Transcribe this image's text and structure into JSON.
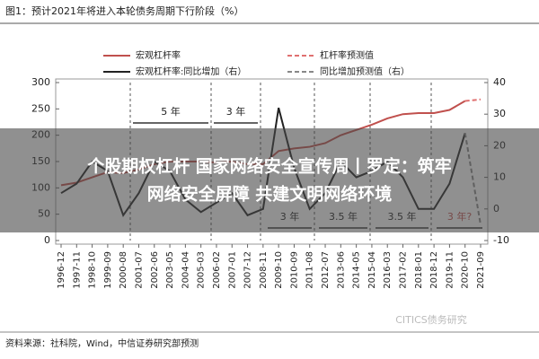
{
  "chart_data": {
    "type": "line",
    "title": "图1：预计2021年将进入本轮债务周期下行阶段（%）",
    "source": "资料来源：社科院，Wind，中信证券研究部预测",
    "watermark": "CITICS债务研究",
    "categories": [
      "1996-12",
      "1997-11",
      "1998-10",
      "1999-09",
      "2000-08",
      "2001-07",
      "2002-06",
      "2003-05",
      "2004-04",
      "2005-03",
      "2006-02",
      "2007-01",
      "2007-12",
      "2008-11",
      "2009-10",
      "2010-09",
      "2011-08",
      "2012-07",
      "2013-06",
      "2014-05",
      "2015-04",
      "2016-03",
      "2017-02",
      "2018-01",
      "2018-12",
      "2019-11",
      "2020-10",
      "2021-09"
    ],
    "series": [
      {
        "name": "宏观杠杆率",
        "color": "#c0504d",
        "dash": false,
        "values": [
          105,
          110,
          120,
          130,
          128,
          135,
          145,
          150,
          150,
          150,
          148,
          150,
          145,
          145,
          170,
          175,
          178,
          185,
          200,
          210,
          220,
          232,
          240,
          242,
          242,
          248,
          265,
          null
        ]
      },
      {
        "name": "杠杆率预测值",
        "color": "#e07070",
        "dash": true,
        "values": [
          null,
          null,
          null,
          null,
          null,
          null,
          null,
          null,
          null,
          null,
          null,
          null,
          null,
          null,
          null,
          null,
          null,
          null,
          null,
          null,
          null,
          null,
          null,
          null,
          null,
          null,
          265,
          268
        ]
      },
      {
        "name": "宏观杠杆率:同比增加（右）",
        "color": "#222222",
        "dash": false,
        "axis": "y2",
        "values": [
          5,
          8,
          15,
          12,
          -2,
          5,
          15,
          12,
          3,
          -1,
          2,
          5,
          -2,
          0,
          32,
          13,
          0,
          5,
          15,
          10,
          12,
          15,
          10,
          0,
          0,
          8,
          24,
          null
        ]
      },
      {
        "name": "同比增加预测值（右）",
        "color": "#888888",
        "dash": true,
        "axis": "y2",
        "values": [
          null,
          null,
          null,
          null,
          null,
          null,
          null,
          null,
          null,
          null,
          null,
          null,
          null,
          null,
          null,
          null,
          null,
          null,
          null,
          null,
          null,
          null,
          null,
          null,
          null,
          null,
          24,
          -5
        ]
      }
    ],
    "ylim": [
      0,
      300
    ],
    "yticks": [
      0,
      50,
      100,
      150,
      200,
      250,
      300
    ],
    "y2lim": [
      -10,
      40
    ],
    "y2ticks": [
      -10,
      0,
      10,
      20,
      30,
      40
    ],
    "annotations": [
      "5 年",
      "3 年",
      "3 年",
      "3.5 年",
      "3.5 年",
      "3 年?"
    ],
    "overlay": {
      "line1": "个股期权杠杆 国家网络安全宣传周丨罗定：筑牢",
      "line2": "网络安全屏障 共建文明网络环境"
    }
  }
}
